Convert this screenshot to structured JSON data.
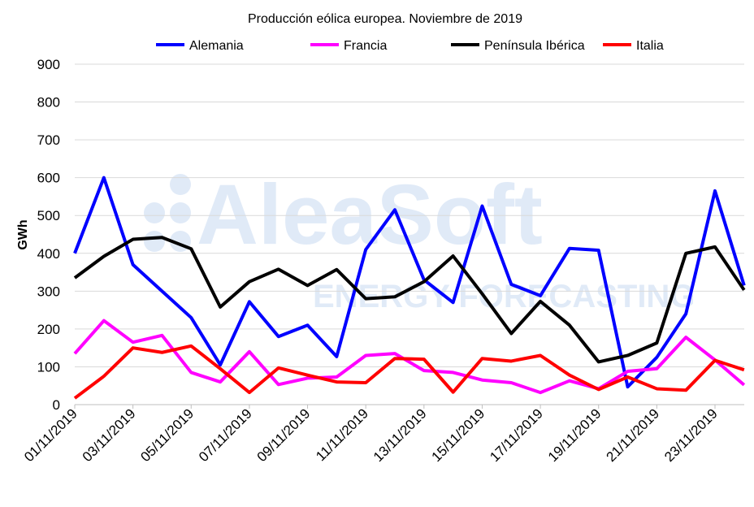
{
  "chart_data": {
    "type": "line",
    "title": "Producción eólica europea. Noviembre de 2019",
    "xlabel": "",
    "ylabel": "GWh",
    "ylim": [
      0,
      900
    ],
    "yticks": [
      0,
      100,
      200,
      300,
      400,
      500,
      600,
      700,
      800,
      900
    ],
    "grid": true,
    "legend_position": "top",
    "x": [
      "01/11/2019",
      "02/11/2019",
      "03/11/2019",
      "04/11/2019",
      "05/11/2019",
      "06/11/2019",
      "07/11/2019",
      "08/11/2019",
      "09/11/2019",
      "10/11/2019",
      "11/11/2019",
      "12/11/2019",
      "13/11/2019",
      "14/11/2019",
      "15/11/2019",
      "16/11/2019",
      "17/11/2019",
      "18/11/2019",
      "19/11/2019",
      "20/11/2019",
      "21/11/2019",
      "22/11/2019",
      "23/11/2019",
      "24/11/2019"
    ],
    "xtick_labels": [
      "01/11/2019",
      "03/11/2019",
      "05/11/2019",
      "07/11/2019",
      "09/11/2019",
      "11/11/2019",
      "13/11/2019",
      "15/11/2019",
      "17/11/2019",
      "19/11/2019",
      "21/11/2019",
      "23/11/2019"
    ],
    "series": [
      {
        "name": "Alemania",
        "color": "#0000ff",
        "values": [
          400,
          600,
          370,
          300,
          230,
          105,
          272,
          180,
          210,
          127,
          410,
          515,
          330,
          270,
          525,
          318,
          288,
          413,
          408,
          47,
          125,
          240,
          565,
          315
        ]
      },
      {
        "name": "Francia",
        "color": "#ff00ff",
        "values": [
          135,
          222,
          165,
          183,
          85,
          60,
          140,
          53,
          70,
          73,
          130,
          135,
          90,
          85,
          65,
          58,
          32,
          63,
          42,
          88,
          95,
          178,
          118,
          52
        ]
      },
      {
        "name": "Península Ibérica",
        "color": "#000000",
        "values": [
          335,
          392,
          437,
          442,
          412,
          258,
          325,
          358,
          315,
          357,
          280,
          285,
          325,
          393,
          293,
          188,
          273,
          210,
          113,
          130,
          163,
          400,
          417,
          303
        ]
      },
      {
        "name": "Italia",
        "color": "#ff0000",
        "values": [
          17,
          75,
          150,
          138,
          155,
          95,
          32,
          97,
          78,
          60,
          58,
          122,
          120,
          33,
          122,
          115,
          130,
          78,
          40,
          73,
          42,
          38,
          117,
          92
        ]
      }
    ]
  },
  "watermark": {
    "name": "AleaSoft",
    "tagline": "ENERGY FORECASTING",
    "color": "#dde8f7"
  }
}
